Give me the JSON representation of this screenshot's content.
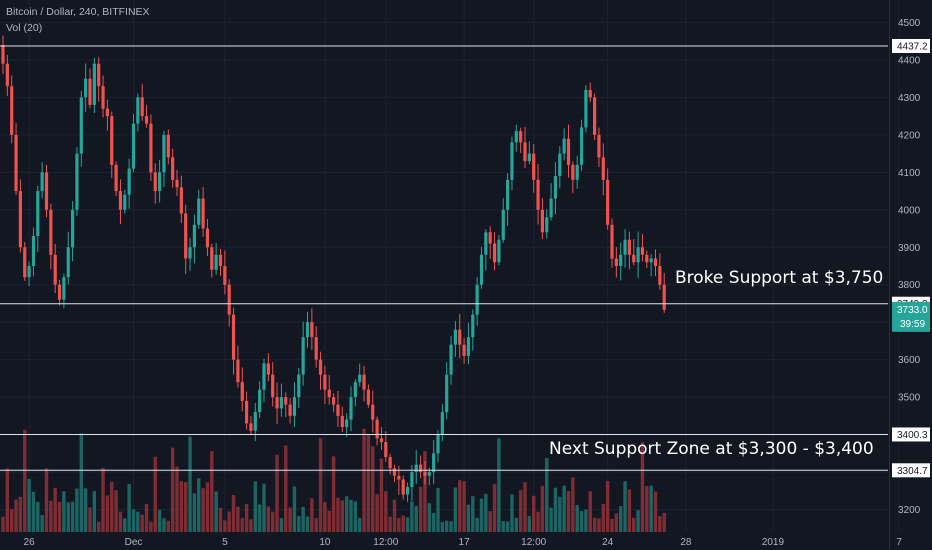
{
  "header": {
    "symbol_line": "Bitcoin / Dollar, 240, BITFINEX",
    "volume_line": "Vol (20)"
  },
  "annotations": {
    "broke_support": "Broke Support at $3,750",
    "next_support": "Next Support Zone at $3,300 - $3,400"
  },
  "colors": {
    "background": "#131722",
    "up": "#26a69a",
    "down": "#ef5350",
    "up_volume": "#1f6e69",
    "down_volume": "#8c3036",
    "grid": "#1e2230",
    "axis_text": "#b2b5be",
    "hline": "#e0e3eb",
    "last_price_bg": "#26a69a"
  },
  "chart_data": {
    "type": "candlestick",
    "title": "Bitcoin / Dollar, 240, BITFINEX",
    "y_axis": {
      "range": [
        3140,
        4560
      ],
      "ticks": [
        3200,
        3300,
        3400,
        3500,
        3600,
        3700,
        3800,
        3900,
        4000,
        4100,
        4200,
        4300,
        4400,
        4500
      ]
    },
    "x_axis": {
      "ticks": [
        {
          "label": "26",
          "bar": 6
        },
        {
          "label": "Dec",
          "bar": 30
        },
        {
          "label": "5",
          "bar": 51
        },
        {
          "label": "10",
          "bar": 74
        },
        {
          "label": "12:00",
          "bar": 88
        },
        {
          "label": "17",
          "bar": 106
        },
        {
          "label": "12:00",
          "bar": 122
        },
        {
          "label": "24",
          "bar": 139
        },
        {
          "label": "28",
          "bar": 157
        },
        {
          "label": "2019",
          "bar": 177
        },
        {
          "label": "7",
          "bar": 206
        }
      ]
    },
    "horizontal_lines": [
      {
        "price": 4437.2,
        "label": "4437.2"
      },
      {
        "price": 3749.3,
        "label": "3749.3"
      },
      {
        "price": 3400.3,
        "label": "3400.3"
      },
      {
        "price": 3304.7,
        "label": "3304.7"
      }
    ],
    "last_price": {
      "value": "3733.0",
      "countdown": "39:59"
    },
    "close_prices": [
      4390,
      4330,
      4200,
      4050,
      3900,
      3820,
      3850,
      3930,
      4050,
      4100,
      4000,
      3880,
      3800,
      3760,
      3820,
      3900,
      4000,
      4150,
      4300,
      4350,
      4280,
      4390,
      4330,
      4270,
      4250,
      4120,
      4050,
      4000,
      4040,
      4110,
      4230,
      4300,
      4250,
      4230,
      4100,
      4050,
      4100,
      4200,
      4140,
      4080,
      4060,
      3990,
      3870,
      3900,
      3960,
      4030,
      3950,
      3900,
      3840,
      3880,
      3850,
      3800,
      3720,
      3600,
      3540,
      3490,
      3430,
      3410,
      3460,
      3520,
      3590,
      3560,
      3500,
      3470,
      3500,
      3480,
      3450,
      3500,
      3560,
      3660,
      3700,
      3660,
      3600,
      3560,
      3520,
      3500,
      3480,
      3450,
      3420,
      3440,
      3500,
      3540,
      3560,
      3520,
      3480,
      3440,
      3390,
      3380,
      3340,
      3310,
      3290,
      3280,
      3240,
      3260,
      3300,
      3320,
      3300,
      3290,
      3300,
      3350,
      3400,
      3460,
      3560,
      3640,
      3680,
      3640,
      3610,
      3660,
      3720,
      3800,
      3880,
      3940,
      3910,
      3860,
      3920,
      4000,
      4080,
      4180,
      4210,
      4180,
      4130,
      4150,
      4080,
      4000,
      3940,
      3980,
      4030,
      4090,
      4150,
      4190,
      4120,
      4080,
      4120,
      4220,
      4320,
      4300,
      4200,
      4140,
      4080,
      3960,
      3870,
      3850,
      3880,
      3920,
      3880,
      3860,
      3900,
      3880,
      3860,
      3870,
      3850,
      3800,
      3733
    ]
  }
}
